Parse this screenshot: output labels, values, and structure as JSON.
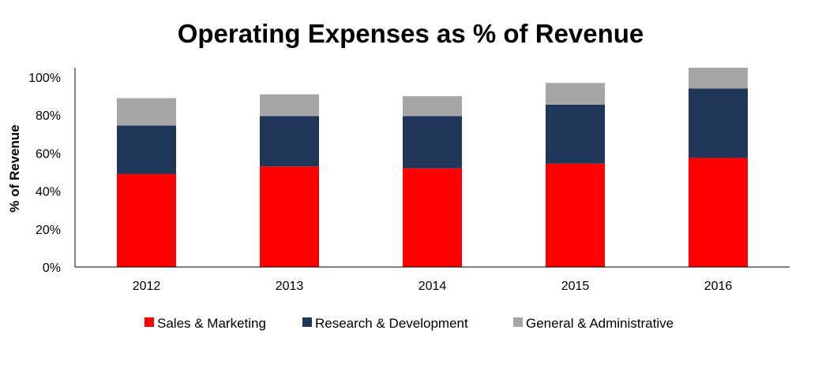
{
  "chart_data": {
    "type": "bar",
    "stacked": true,
    "title": "Operating Expenses as % of Revenue",
    "xlabel": "",
    "ylabel": "% of Revenue",
    "categories": [
      "2012",
      "2013",
      "2014",
      "2015",
      "2016"
    ],
    "ylim": [
      0,
      105
    ],
    "yticks": [
      "0%",
      "20%",
      "40%",
      "60%",
      "80%",
      "100%"
    ],
    "ytick_values": [
      0,
      20,
      40,
      60,
      80,
      100
    ],
    "grid": false,
    "legend_position": "bottom",
    "series": [
      {
        "name": "Sales & Marketing",
        "color": "#ff0000",
        "values": [
          49,
          53,
          52,
          54.5,
          57.5
        ]
      },
      {
        "name": "Research & Development",
        "color": "#1f3658",
        "values": [
          25.5,
          26.5,
          27.5,
          31,
          36.5
        ]
      },
      {
        "name": "General & Administrative",
        "color": "#a6a6a6",
        "values": [
          14.5,
          11.5,
          10.5,
          11.5,
          11
        ]
      }
    ]
  }
}
